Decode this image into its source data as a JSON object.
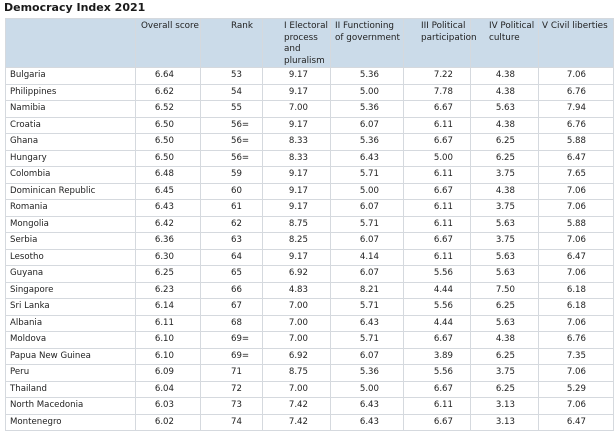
{
  "header": {
    "title": "Democracy Index 2021"
  },
  "table": {
    "columns": [
      "Overall score",
      "Rank",
      "I Electoral process and pluralism",
      "II Functioning of government",
      "III Political participation",
      "IV Political culture",
      "V Civil liberties"
    ],
    "rows": [
      [
        "Bulgaria",
        "6.64",
        "53",
        "9.17",
        "5.36",
        "7.22",
        "4.38",
        "7.06"
      ],
      [
        "Philippines",
        "6.62",
        "54",
        "9.17",
        "5.00",
        "7.78",
        "4.38",
        "6.76"
      ],
      [
        "Namibia",
        "6.52",
        "55",
        "7.00",
        "5.36",
        "6.67",
        "5.63",
        "7.94"
      ],
      [
        "Croatia",
        "6.50",
        "56=",
        "9.17",
        "6.07",
        "6.11",
        "4.38",
        "6.76"
      ],
      [
        "Ghana",
        "6.50",
        "56=",
        "8.33",
        "5.36",
        "6.67",
        "6.25",
        "5.88"
      ],
      [
        "Hungary",
        "6.50",
        "56=",
        "8.33",
        "6.43",
        "5.00",
        "6.25",
        "6.47"
      ],
      [
        "Colombia",
        "6.48",
        "59",
        "9.17",
        "5.71",
        "6.11",
        "3.75",
        "7.65"
      ],
      [
        "Dominican Republic",
        "6.45",
        "60",
        "9.17",
        "5.00",
        "6.67",
        "4.38",
        "7.06"
      ],
      [
        "Romania",
        "6.43",
        "61",
        "9.17",
        "6.07",
        "6.11",
        "3.75",
        "7.06"
      ],
      [
        "Mongolia",
        "6.42",
        "62",
        "8.75",
        "5.71",
        "6.11",
        "5.63",
        "5.88"
      ],
      [
        "Serbia",
        "6.36",
        "63",
        "8.25",
        "6.07",
        "6.67",
        "3.75",
        "7.06"
      ],
      [
        "Lesotho",
        "6.30",
        "64",
        "9.17",
        "4.14",
        "6.11",
        "5.63",
        "6.47"
      ],
      [
        "Guyana",
        "6.25",
        "65",
        "6.92",
        "6.07",
        "5.56",
        "5.63",
        "7.06"
      ],
      [
        "Singapore",
        "6.23",
        "66",
        "4.83",
        "8.21",
        "4.44",
        "7.50",
        "6.18"
      ],
      [
        "Sri Lanka",
        "6.14",
        "67",
        "7.00",
        "5.71",
        "5.56",
        "6.25",
        "6.18"
      ],
      [
        "Albania",
        "6.11",
        "68",
        "7.00",
        "6.43",
        "4.44",
        "5.63",
        "7.06"
      ],
      [
        "Moldova",
        "6.10",
        "69=",
        "7.00",
        "5.71",
        "6.67",
        "4.38",
        "6.76"
      ],
      [
        "Papua New Guinea",
        "6.10",
        "69=",
        "6.92",
        "6.07",
        "3.89",
        "6.25",
        "7.35"
      ],
      [
        "Peru",
        "6.09",
        "71",
        "8.75",
        "5.36",
        "5.56",
        "3.75",
        "7.06"
      ],
      [
        "Thailand",
        "6.04",
        "72",
        "7.00",
        "5.00",
        "6.67",
        "6.25",
        "5.29"
      ],
      [
        "North Macedonia",
        "6.03",
        "73",
        "7.42",
        "6.43",
        "6.11",
        "3.13",
        "7.06"
      ],
      [
        "Montenegro",
        "6.02",
        "74",
        "7.42",
        "6.43",
        "6.67",
        "3.13",
        "6.47"
      ]
    ]
  }
}
